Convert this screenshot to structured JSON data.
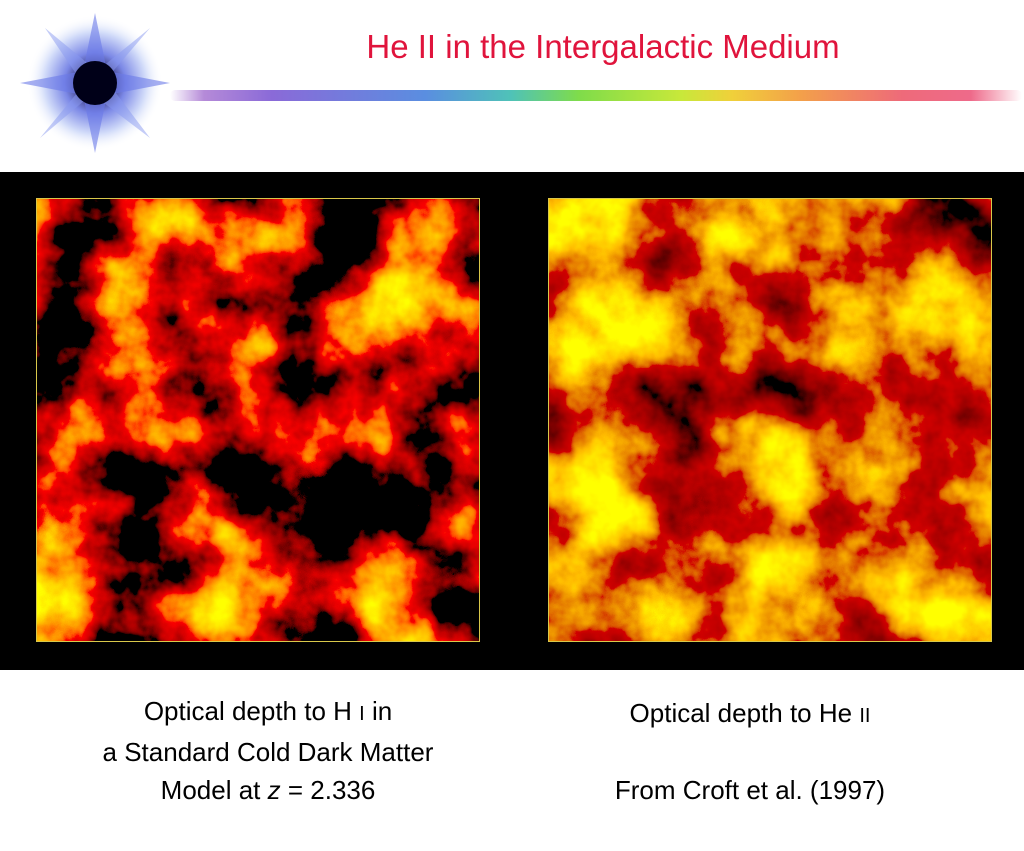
{
  "title": "He II in the Intergalactic Medium",
  "captions": [
    {
      "lines": [
        [
          "Optical depth to H ",
          "I",
          " in"
        ],
        [
          "a Standard Cold Dark Matter"
        ],
        [
          "Model at ",
          "z",
          " = 2.336"
        ]
      ]
    },
    {
      "lines": [
        [
          "Optical depth to He ",
          "II"
        ],
        [
          "From Croft et al. (1997)"
        ]
      ]
    }
  ]
}
